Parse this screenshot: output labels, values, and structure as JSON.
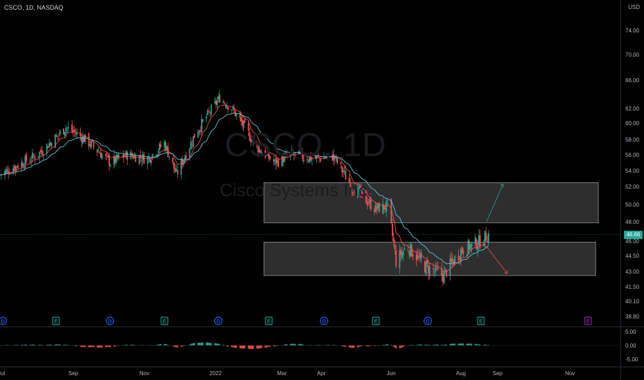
{
  "header": {
    "title": "CSCO, 1D, NASDAQ",
    "currency": "USD"
  },
  "watermark": {
    "symbol": "CSCO, 1D",
    "name": "Cisco Systems Inc."
  },
  "price_tag": "46.66",
  "colors": {
    "up": "#26a69a",
    "down": "#ef5350",
    "ma_fast": "#ef5350",
    "ma_slow": "#5ec8e0",
    "zone": "#ffffff",
    "arrow_up": "#26a69a",
    "arrow_down": "#ef5350",
    "dividend": "#2962ff",
    "earnings": "#26a69a",
    "future_earnings": "#9c27b0"
  },
  "chart_data": [
    {
      "type": "candlestick",
      "x_axis_labels": [
        "Jul",
        "Sep",
        "Nov",
        "2022",
        "Mar",
        "Apr",
        "Jun",
        "Aug",
        "Sep",
        "Nov"
      ],
      "y_ticks": [
        74.0,
        70.0,
        66.0,
        62.0,
        60.0,
        58.0,
        56.0,
        54.0,
        52.0,
        50.0,
        48.0,
        46.0,
        44.5,
        43.0,
        41.5,
        40.1,
        38.8
      ],
      "last_price": 46.66,
      "events": [
        "D",
        "E",
        "D",
        "E",
        "D",
        "E",
        "D",
        "E",
        "D",
        "E",
        "E"
      ],
      "zones": [
        {
          "name": "resistance",
          "from": 47.9,
          "to": 52.5
        },
        {
          "name": "support",
          "from": 42.6,
          "to": 45.9
        }
      ],
      "projections": [
        {
          "direction": "up",
          "from": 48.0,
          "to": 52.3
        },
        {
          "direction": "down",
          "from": 45.8,
          "to": 42.8
        }
      ],
      "anchors": [
        [
          "2021-07-01",
          53.5
        ],
        [
          "2021-08-01",
          56.0
        ],
        [
          "2021-08-25",
          59.5
        ],
        [
          "2021-09-10",
          58.0
        ],
        [
          "2021-10-01",
          55.0
        ],
        [
          "2021-10-15",
          56.0
        ],
        [
          "2021-11-01",
          55.5
        ],
        [
          "2021-11-15",
          57.5
        ],
        [
          "2021-11-25",
          53.5
        ],
        [
          "2021-12-10",
          58.5
        ],
        [
          "2021-12-31",
          63.5
        ],
        [
          "2022-01-10",
          62.0
        ],
        [
          "2022-01-31",
          57.0
        ],
        [
          "2022-02-15",
          55.0
        ],
        [
          "2022-03-01",
          56.0
        ],
        [
          "2022-03-20",
          55.5
        ],
        [
          "2022-04-05",
          55.8
        ],
        [
          "2022-04-20",
          52.0
        ],
        [
          "2022-05-10",
          49.5
        ],
        [
          "2022-05-20",
          49.8
        ],
        [
          "2022-05-27",
          44.0
        ],
        [
          "2022-06-05",
          45.5
        ],
        [
          "2022-06-20",
          43.5
        ],
        [
          "2022-07-05",
          42.6
        ],
        [
          "2022-07-20",
          45.0
        ],
        [
          "2022-08-05",
          46.0
        ],
        [
          "2022-08-12",
          46.7
        ]
      ]
    },
    {
      "type": "histogram",
      "name": "oscillator",
      "y_ticks": [
        5.0,
        0.0,
        -5.0
      ]
    }
  ]
}
